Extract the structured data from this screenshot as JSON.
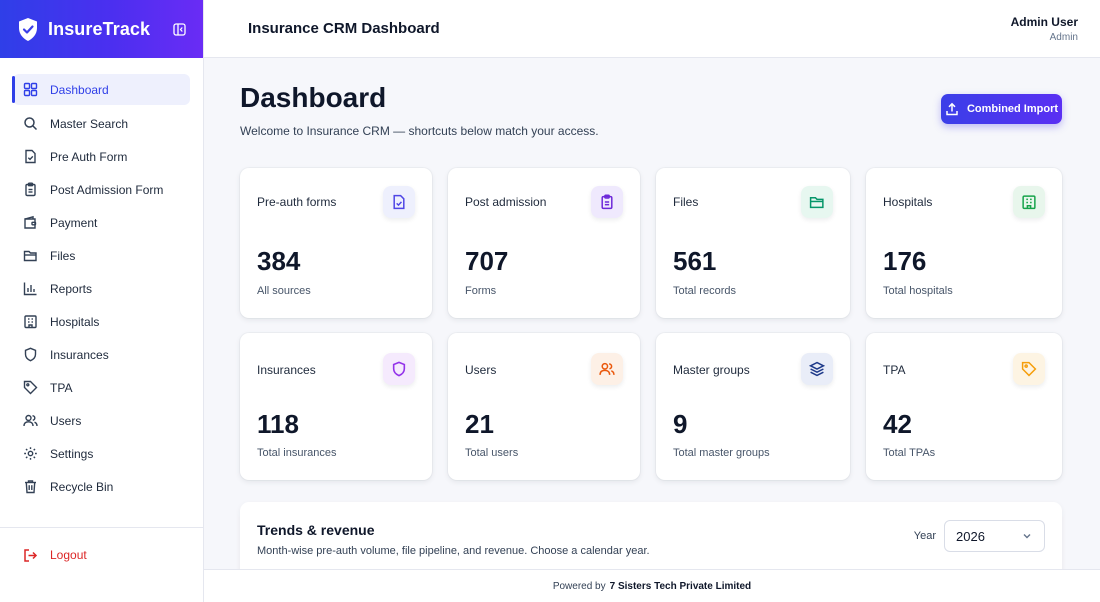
{
  "brand": {
    "name": "InsureTrack",
    "logo_icon": "shield-check-icon",
    "collapse_icon": "sidebar-collapse-icon"
  },
  "sidebar": {
    "items": [
      {
        "label": "Dashboard",
        "icon": "grid-icon",
        "active": true
      },
      {
        "label": "Master Search",
        "icon": "search-icon"
      },
      {
        "label": "Pre Auth Form",
        "icon": "file-check-icon"
      },
      {
        "label": "Post Admission Form",
        "icon": "clipboard-icon"
      },
      {
        "label": "Payment",
        "icon": "wallet-icon"
      },
      {
        "label": "Files",
        "icon": "folder-icon"
      },
      {
        "label": "Reports",
        "icon": "bar-chart-icon"
      },
      {
        "label": "Hospitals",
        "icon": "hospital-icon"
      },
      {
        "label": "Insurances",
        "icon": "shield-icon"
      },
      {
        "label": "TPA",
        "icon": "tag-icon"
      },
      {
        "label": "Users",
        "icon": "users-icon"
      },
      {
        "label": "Settings",
        "icon": "gear-icon"
      },
      {
        "label": "Recycle Bin",
        "icon": "trash-icon"
      }
    ],
    "logout_label": "Logout"
  },
  "topbar": {
    "title": "Insurance CRM Dashboard",
    "user_name": "Admin User",
    "user_role": "Admin"
  },
  "page": {
    "title": "Dashboard",
    "subtitle": "Welcome to Insurance CRM — shortcuts below match your access.",
    "import_button": "Combined Import"
  },
  "cards": [
    {
      "label": "Pre-auth forms",
      "value": "384",
      "caption": "All sources",
      "icon": "file-check-icon",
      "color": "#4f46e5",
      "bg": "#eef0fd"
    },
    {
      "label": "Post admission",
      "value": "707",
      "caption": "Forms",
      "icon": "clipboard-icon",
      "color": "#6d28d9",
      "bg": "#efe9fd"
    },
    {
      "label": "Files",
      "value": "561",
      "caption": "Total records",
      "icon": "folder-icon",
      "color": "#059669",
      "bg": "#e7f7f0"
    },
    {
      "label": "Hospitals",
      "value": "176",
      "caption": "Total hospitals",
      "icon": "hospital-icon",
      "color": "#16a34a",
      "bg": "#e8f6ec"
    },
    {
      "label": "Insurances",
      "value": "118",
      "caption": "Total insurances",
      "icon": "shield-icon",
      "color": "#9333ea",
      "bg": "#f5eafd"
    },
    {
      "label": "Users",
      "value": "21",
      "caption": "Total users",
      "icon": "users-icon",
      "color": "#ea580c",
      "bg": "#fdf0e6"
    },
    {
      "label": "Master groups",
      "value": "9",
      "caption": "Total master groups",
      "icon": "layers-icon",
      "color": "#1e3a8a",
      "bg": "#e9edf8"
    },
    {
      "label": "TPA",
      "value": "42",
      "caption": "Total TPAs",
      "icon": "tag-icon",
      "color": "#f59e0b",
      "bg": "#fdf4e3"
    }
  ],
  "trends": {
    "title": "Trends & revenue",
    "subtitle": "Month-wise pre-auth volume, file pipeline, and revenue. Choose a calendar year.",
    "year_label": "Year",
    "year_value": "2026"
  },
  "footer": {
    "prefix": "Powered by",
    "company": "7 Sisters Tech Private Limited"
  },
  "colors": {
    "accent": "#2f3fe8",
    "danger": "#dc2626"
  }
}
